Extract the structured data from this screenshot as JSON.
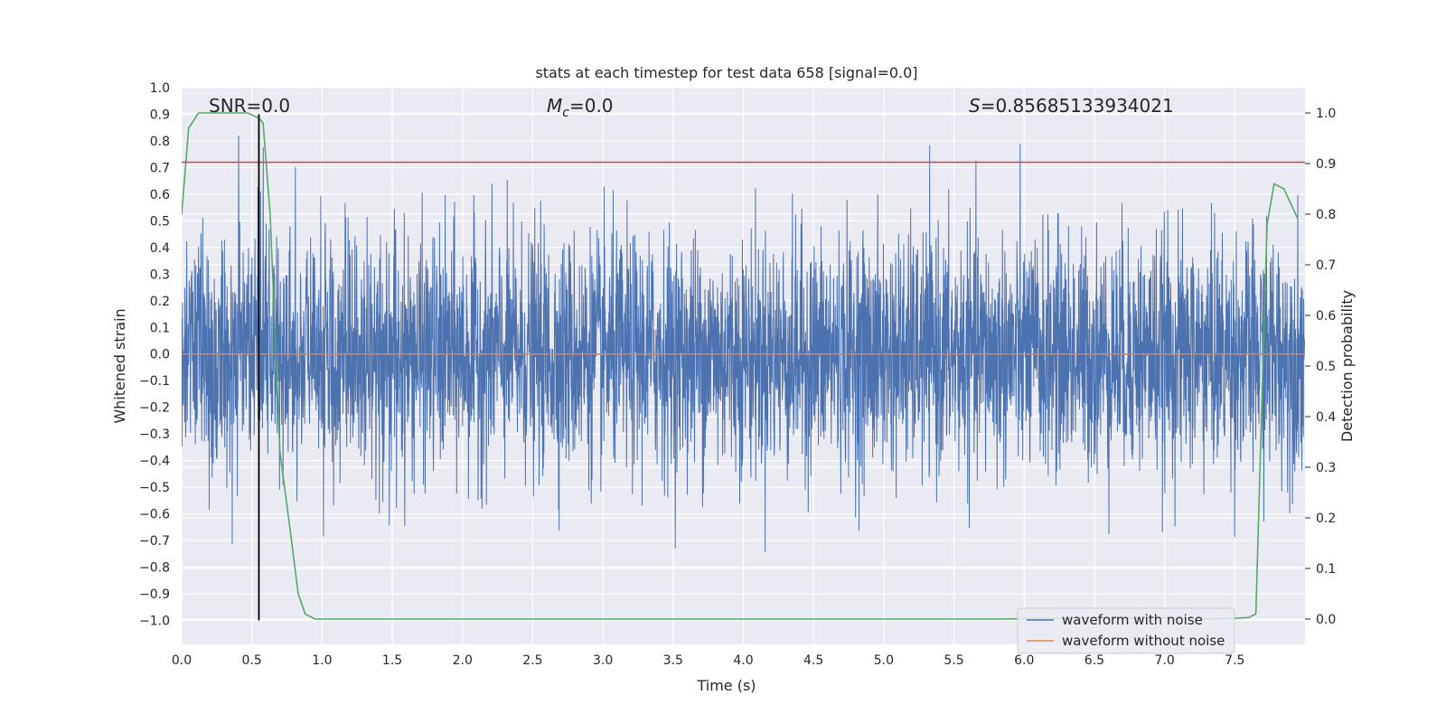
{
  "chart_data": {
    "type": "line",
    "title": "stats at each timestep for test data 658 [signal=0.0]",
    "xlabel": "Time (s)",
    "ylabel": "Whitened strain",
    "y2label": "Detection probability",
    "xlim": [
      0.0,
      8.0
    ],
    "ylim": [
      -1.09,
      1.0
    ],
    "y2lim": [
      -0.05,
      1.05
    ],
    "x_ticks": [
      "0.0",
      "0.5",
      "1.0",
      "1.5",
      "2.0",
      "2.5",
      "3.0",
      "3.5",
      "4.0",
      "4.5",
      "5.0",
      "5.5",
      "6.0",
      "6.5",
      "7.0",
      "7.5"
    ],
    "y_ticks": [
      "1.0",
      "0.9",
      "0.8",
      "0.7",
      "0.6",
      "0.5",
      "0.4",
      "0.3",
      "0.2",
      "0.1",
      "0.0",
      "−0.1",
      "−0.2",
      "−0.3",
      "−0.4",
      "−0.5",
      "−0.6",
      "−0.7",
      "−0.8",
      "−0.9",
      "−1.0"
    ],
    "y2_ticks": [
      "1.0",
      "0.9",
      "0.8",
      "0.7",
      "0.6",
      "0.5",
      "0.4",
      "0.3",
      "0.2",
      "0.1",
      "0.0"
    ],
    "annotations": {
      "snr": "SNR=0.0",
      "mc_symbol": "M",
      "mc_sub": "c",
      "mc_value": "=0.0",
      "s_symbol": "S",
      "s_value": "=0.85685133934021"
    },
    "series": [
      {
        "name": "waveform with noise",
        "color": "#4c72b0",
        "kind": "noise",
        "amplitude_range": [
          -1.0,
          0.91
        ]
      },
      {
        "name": "waveform without noise",
        "color": "#dd8452",
        "x": [
          0.0,
          8.0
        ],
        "y": [
          0.0,
          0.0
        ]
      },
      {
        "name": "detection probability",
        "color": "#55a868",
        "axis": "right",
        "x": [
          0.0,
          0.05,
          0.12,
          0.2,
          0.3,
          0.4,
          0.47,
          0.55,
          0.58,
          0.63,
          0.7,
          0.78,
          0.83,
          0.88,
          0.95,
          1.2,
          2.0,
          3.0,
          4.0,
          5.0,
          5.8,
          6.5,
          7.0,
          7.4,
          7.6,
          7.65,
          7.7,
          7.73,
          7.78,
          7.85,
          7.95
        ],
        "y": [
          0.8,
          0.97,
          1.0,
          1.0,
          1.0,
          1.0,
          1.0,
          0.99,
          0.98,
          0.8,
          0.33,
          0.16,
          0.05,
          0.01,
          0.0,
          0.0,
          0.0,
          0.0,
          0.0,
          0.0,
          0.0,
          0.002,
          0.002,
          0.0,
          0.003,
          0.01,
          0.5,
          0.78,
          0.86,
          0.85,
          0.79
        ]
      },
      {
        "name": "threshold",
        "color": "#c44e52",
        "axis": "left",
        "x": [
          0.0,
          8.0
        ],
        "y": [
          0.72,
          0.72
        ]
      },
      {
        "name": "marker",
        "color": "#000000",
        "axis": "left",
        "x": [
          0.55,
          0.55
        ],
        "y": [
          -1.0,
          0.9
        ]
      }
    ],
    "legend": {
      "position": "bottom-right",
      "entries": [
        "waveform with noise",
        "waveform without noise"
      ]
    }
  }
}
